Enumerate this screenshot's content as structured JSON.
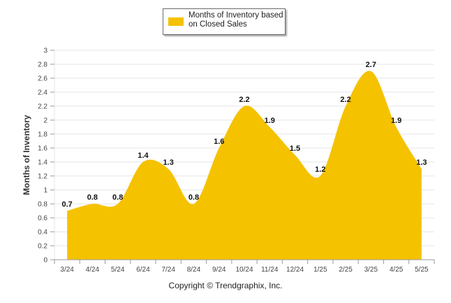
{
  "legend": {
    "label": "Months of Inventory based on Closed Sales"
  },
  "copyright": "Copyright © Trendgraphix, Inc.",
  "colors": {
    "area": "#f5c200",
    "grid": "#e6e6e6",
    "axis": "#999999"
  },
  "chart_data": {
    "type": "area",
    "categories": [
      "3/24",
      "4/24",
      "5/24",
      "6/24",
      "7/24",
      "8/24",
      "9/24",
      "10/24",
      "11/24",
      "12/24",
      "1/25",
      "2/25",
      "3/25",
      "4/25",
      "5/25"
    ],
    "series": [
      {
        "name": "Months of Inventory based on Closed Sales",
        "values": [
          0.7,
          0.8,
          0.8,
          1.4,
          1.3,
          0.8,
          1.6,
          2.2,
          1.9,
          1.5,
          1.2,
          2.2,
          2.7,
          1.9,
          1.3
        ]
      }
    ],
    "ylabel": "Months of Inventory",
    "ylim": [
      0,
      3
    ],
    "yticks": [
      "0",
      "0.2",
      "0.4",
      "0.6",
      "0.8",
      "1",
      "1.2",
      "1.4",
      "1.6",
      "1.8",
      "2",
      "2.2",
      "2.4",
      "2.6",
      "2.8",
      "3"
    ],
    "grid": true,
    "legend_position": "top-center"
  }
}
